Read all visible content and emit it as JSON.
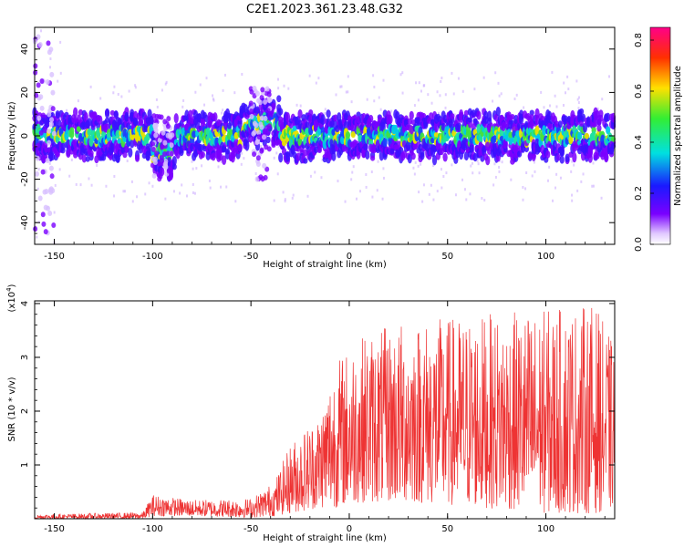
{
  "figure": {
    "title": "C2E1.2023.361.23.48.G32"
  },
  "chart_data": [
    {
      "type": "heatmap",
      "xlabel": "Height of straight line (km)",
      "ylabel": "Frequency (Hz)",
      "xlim": [
        -160,
        135
      ],
      "ylim": [
        -50,
        50
      ],
      "xticks": [
        -150,
        -100,
        -50,
        0,
        50,
        100
      ],
      "yticks": [
        -40,
        -20,
        0,
        20,
        40
      ],
      "colorbar": {
        "label": "Normalized spectral amplitude",
        "range": [
          0.0,
          0.85
        ],
        "ticks": [
          "0.0",
          "0.2",
          "0.4",
          "0.6",
          "0.8"
        ],
        "colormap": "rainbow (violet low, red/magenta high)"
      },
      "description_series": {
        "name": "",
        "band_center_hz": 0,
        "notable_features": [
          {
            "x": -95,
            "y_range": [
              -20,
              10
            ]
          },
          {
            "x": -45,
            "y_range": [
              -20,
              22
            ]
          },
          {
            "x": -155,
            "y_range": [
              -50,
              50
            ]
          }
        ]
      }
    },
    {
      "type": "line",
      "xlabel": "Height of straight line (km)",
      "ylabel": "SNR (10 * v/v)",
      "yscale_label": "(x10",
      "yscale_exponent": "4",
      "yscale_suffix": ")",
      "xlim": [
        -160,
        135
      ],
      "ylim": [
        0,
        4.05
      ],
      "xticks": [
        -150,
        -100,
        -50,
        0,
        50,
        100
      ],
      "yticks": [
        1,
        2,
        3,
        4
      ],
      "color": "#ee3333",
      "envelope": [
        {
          "x": -160,
          "low": 0.0,
          "high": 0.08
        },
        {
          "x": -105,
          "low": 0.0,
          "high": 0.12
        },
        {
          "x": -100,
          "low": 0.05,
          "high": 0.45
        },
        {
          "x": -80,
          "low": 0.05,
          "high": 0.35
        },
        {
          "x": -50,
          "low": 0.02,
          "high": 0.38
        },
        {
          "x": -38,
          "low": 0.05,
          "high": 0.7
        },
        {
          "x": -30,
          "low": 0.1,
          "high": 1.4
        },
        {
          "x": -15,
          "low": 0.2,
          "high": 2.0
        },
        {
          "x": -8,
          "low": 0.2,
          "high": 2.9
        },
        {
          "x": 5,
          "low": 0.3,
          "high": 3.4
        },
        {
          "x": 30,
          "low": 0.3,
          "high": 3.7
        },
        {
          "x": 70,
          "low": 0.2,
          "high": 3.8
        },
        {
          "x": 100,
          "low": 0.1,
          "high": 3.9
        },
        {
          "x": 125,
          "low": 0.1,
          "high": 4.0
        },
        {
          "x": 135,
          "low": 0.2,
          "high": 3.2
        }
      ]
    }
  ]
}
